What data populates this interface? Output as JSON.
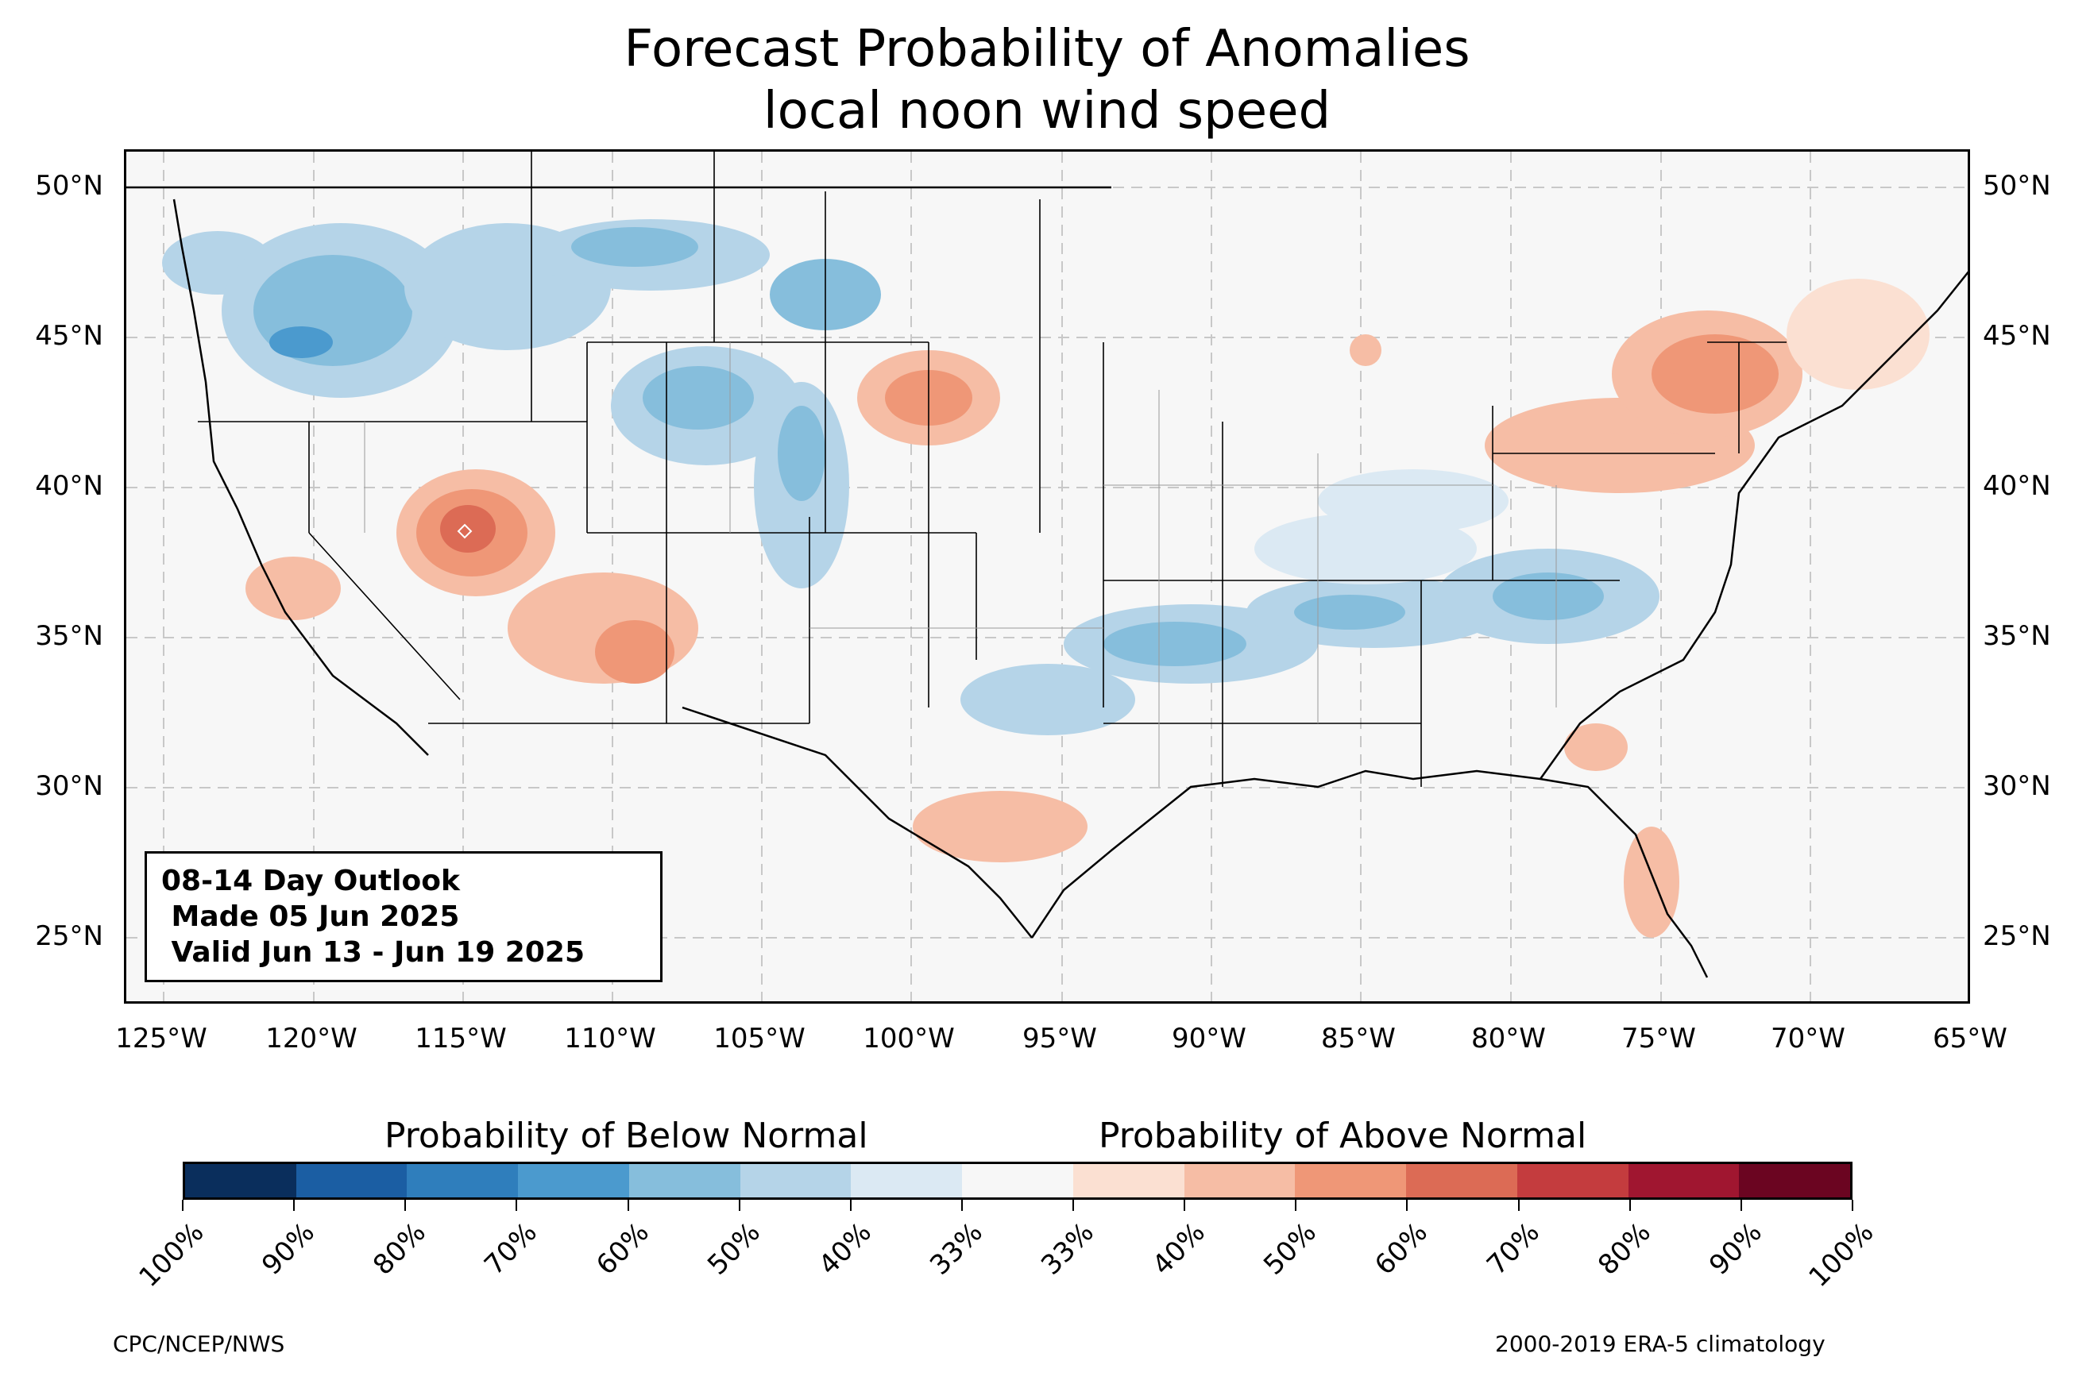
{
  "title_line1": "Forecast Probability of Anomalies",
  "title_line2": "local noon wind speed",
  "latitude_labels": [
    "50°N",
    "45°N",
    "40°N",
    "35°N",
    "30°N",
    "25°N"
  ],
  "longitude_labels": [
    "125°W",
    "120°W",
    "115°W",
    "110°W",
    "105°W",
    "100°W",
    "95°W",
    "90°W",
    "85°W",
    "80°W",
    "75°W",
    "70°W",
    "65°W"
  ],
  "outlook": {
    "line1": "08-14 Day Outlook",
    "line2": " Made 05 Jun 2025",
    "line3": " Valid Jun 13 - Jun 19 2025"
  },
  "legend": {
    "below_label": "Probability of Below Normal",
    "above_label": "Probability of Above Normal",
    "tick_labels": [
      "100%",
      "90%",
      "80%",
      "70%",
      "60%",
      "50%",
      "40%",
      "33%",
      "33%",
      "40%",
      "50%",
      "60%",
      "70%",
      "80%",
      "90%",
      "100%"
    ],
    "colors": [
      "#0a2e5c",
      "#1b5ea3",
      "#2f7ebc",
      "#4b9ace",
      "#86bedc",
      "#b5d4e8",
      "#dbe9f3",
      "#f7f7f7",
      "#fbe0d2",
      "#f6bda5",
      "#ef9777",
      "#dc6b55",
      "#c43c3e",
      "#a01630",
      "#6b0521"
    ]
  },
  "credit_left": "CPC/NCEP/NWS",
  "credit_right": "2000-2019 ERA-5 climatology"
}
